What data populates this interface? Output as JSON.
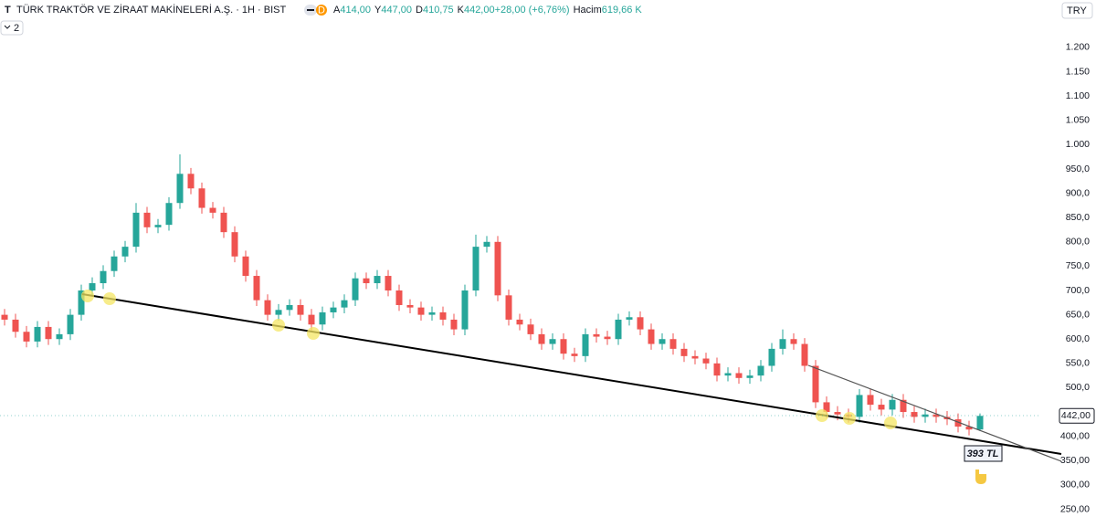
{
  "chart_data": {
    "type": "candlestick",
    "symbol_icon": "T",
    "title": "TÜRK TRAKTÖR VE ZİRAAT MAKİNELERİ A.Ş. · 1H · BIST",
    "badge": "D",
    "header_values": [
      {
        "label": "A",
        "value": "414,00"
      },
      {
        "label": "Y",
        "value": "447,00"
      },
      {
        "label": "D",
        "value": "410,75"
      },
      {
        "label": "K",
        "value": "442,00"
      },
      {
        "label": "",
        "value": "+28,00 (+6,76%)"
      },
      {
        "label": "Hacim",
        "value": "619,66 K"
      }
    ],
    "currency": "TRY",
    "indicator_count": "2",
    "annotation": "393 TL",
    "up_color": "#26a69a",
    "down_color": "#ef5350",
    "ylim": [
      234,
      1260
    ],
    "yticks": [
      {
        "value": 1200,
        "label": "1.200"
      },
      {
        "value": 1150,
        "label": "1.150"
      },
      {
        "value": 1100,
        "label": "1.100"
      },
      {
        "value": 1050,
        "label": "1.050"
      },
      {
        "value": 1000,
        "label": "1.000"
      },
      {
        "value": 950,
        "label": "950,0"
      },
      {
        "value": 900,
        "label": "900,0"
      },
      {
        "value": 850,
        "label": "850,0"
      },
      {
        "value": 800,
        "label": "800,0"
      },
      {
        "value": 750,
        "label": "750,0"
      },
      {
        "value": 700,
        "label": "700,0"
      },
      {
        "value": 650,
        "label": "650,0"
      },
      {
        "value": 600,
        "label": "600,0"
      },
      {
        "value": 550,
        "label": "550,0"
      },
      {
        "value": 500,
        "label": "500,0"
      },
      {
        "value": 400,
        "label": "400,00"
      },
      {
        "value": 350,
        "label": "350,00"
      },
      {
        "value": 300,
        "label": "300,00"
      },
      {
        "value": 250,
        "label": "250,00"
      }
    ],
    "last_price": {
      "value": 442,
      "label": "442,00"
    },
    "open": [
      650,
      640,
      615,
      595,
      625,
      600,
      610,
      650,
      700,
      715,
      740,
      770,
      790,
      860,
      830,
      835,
      880,
      940,
      910,
      870,
      860,
      820,
      770,
      730,
      680,
      650,
      660,
      670,
      650,
      630,
      655,
      665,
      680,
      725,
      715,
      730,
      700,
      670,
      665,
      650,
      655,
      640,
      620,
      700,
      790,
      800,
      690,
      640,
      630,
      610,
      590,
      600,
      570,
      565,
      610,
      605,
      600,
      640,
      645,
      620,
      590,
      600,
      580,
      565,
      560,
      550,
      525,
      530,
      520,
      525,
      545,
      580,
      600,
      590,
      545,
      470,
      450,
      445,
      440,
      485,
      465,
      455,
      475,
      450,
      440,
      445,
      440,
      435,
      420,
      414
    ],
    "high": [
      662,
      652,
      627,
      637,
      637,
      622,
      662,
      712,
      727,
      752,
      782,
      802,
      880,
      872,
      847,
      892,
      980,
      952,
      922,
      882,
      872,
      832,
      782,
      742,
      692,
      672,
      682,
      682,
      662,
      667,
      677,
      692,
      737,
      737,
      742,
      742,
      712,
      682,
      677,
      667,
      667,
      652,
      712,
      815,
      812,
      812,
      702,
      652,
      642,
      622,
      612,
      612,
      582,
      622,
      622,
      617,
      652,
      657,
      657,
      632,
      612,
      612,
      592,
      577,
      572,
      562,
      542,
      542,
      537,
      557,
      592,
      620,
      612,
      602,
      557,
      482,
      462,
      457,
      497,
      497,
      477,
      487,
      487,
      462,
      457,
      457,
      452,
      447,
      432,
      447
    ],
    "low": [
      628,
      603,
      583,
      583,
      588,
      588,
      598,
      638,
      688,
      703,
      728,
      758,
      778,
      818,
      818,
      823,
      868,
      898,
      858,
      848,
      808,
      758,
      718,
      668,
      638,
      638,
      648,
      638,
      618,
      618,
      643,
      653,
      668,
      703,
      703,
      688,
      658,
      653,
      638,
      638,
      628,
      608,
      608,
      688,
      778,
      678,
      628,
      618,
      598,
      578,
      578,
      558,
      553,
      553,
      593,
      588,
      588,
      628,
      608,
      578,
      578,
      568,
      553,
      548,
      538,
      513,
      513,
      508,
      508,
      513,
      533,
      568,
      578,
      533,
      458,
      438,
      433,
      428,
      428,
      453,
      443,
      443,
      438,
      428,
      428,
      428,
      423,
      408,
      402,
      410.75
    ],
    "close": [
      640,
      615,
      595,
      625,
      600,
      610,
      650,
      700,
      715,
      740,
      770,
      790,
      860,
      830,
      835,
      880,
      940,
      910,
      870,
      860,
      820,
      770,
      730,
      680,
      650,
      660,
      670,
      650,
      630,
      655,
      665,
      680,
      725,
      715,
      730,
      700,
      670,
      665,
      650,
      655,
      640,
      620,
      700,
      790,
      800,
      690,
      640,
      630,
      610,
      590,
      600,
      570,
      565,
      610,
      605,
      600,
      640,
      645,
      620,
      590,
      600,
      580,
      565,
      560,
      550,
      525,
      530,
      520,
      525,
      545,
      580,
      600,
      590,
      545,
      470,
      450,
      445,
      440,
      485,
      465,
      455,
      475,
      450,
      440,
      445,
      440,
      435,
      420,
      414,
      442
    ]
  }
}
